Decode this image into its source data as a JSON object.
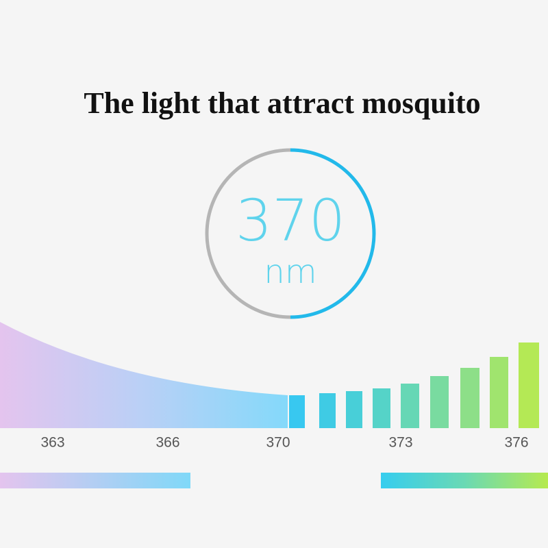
{
  "title": "The light that attract mosquito",
  "gauge": {
    "value": "370",
    "unit": "nm"
  },
  "scale": {
    "labels": [
      "363",
      "366",
      "370",
      "373",
      "376"
    ]
  }
}
